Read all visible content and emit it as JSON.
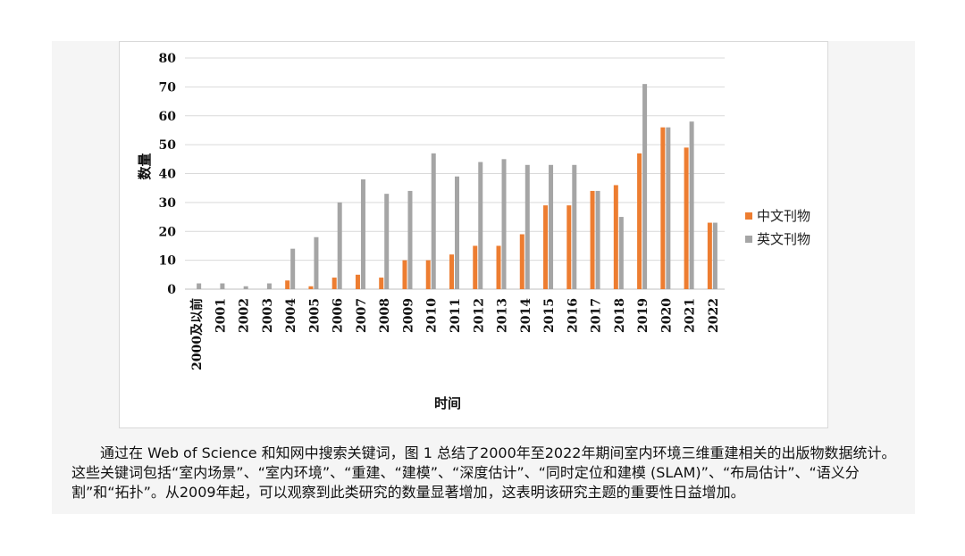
{
  "chart_data": {
    "type": "bar",
    "categories": [
      "2000及以前",
      "2001",
      "2002",
      "2003",
      "2004",
      "2005",
      "2006",
      "2007",
      "2008",
      "2009",
      "2010",
      "2011",
      "2012",
      "2013",
      "2014",
      "2015",
      "2016",
      "2017",
      "2018",
      "2019",
      "2020",
      "2021",
      "2022"
    ],
    "series": [
      {
        "name": "中文刊物",
        "color": "#ed7d31",
        "values": [
          0,
          0,
          0,
          0,
          3,
          1,
          4,
          5,
          4,
          10,
          10,
          12,
          15,
          15,
          19,
          29,
          29,
          34,
          36,
          47,
          56,
          49,
          23
        ]
      },
      {
        "name": "英文刊物",
        "color": "#a5a5a5",
        "values": [
          2,
          2,
          1,
          2,
          14,
          18,
          30,
          38,
          33,
          34,
          47,
          39,
          44,
          45,
          43,
          43,
          43,
          34,
          25,
          71,
          56,
          58,
          23
        ]
      }
    ],
    "xlabel": "时间",
    "ylabel": "数量",
    "ylim": [
      0,
      80
    ],
    "yticks": [
      0,
      10,
      20,
      30,
      40,
      50,
      60,
      70,
      80
    ],
    "grid": true,
    "legend": "right"
  },
  "caption": "通过在 Web of Science 和知网中搜索关键词，图 1 总结了2000年至2022年期间室内环境三维重建相关的出版物数据统计。这些关键词包括“室内场景”、“室内环境”、“重建、“建模”、“深度估计”、“同时定位和建模 (SLAM)”、“布局估计”、“语义分割”和“拓扑”。从2009年起，可以观察到此类研究的数量显著增加，这表明该研究主题的重要性日益增加。"
}
